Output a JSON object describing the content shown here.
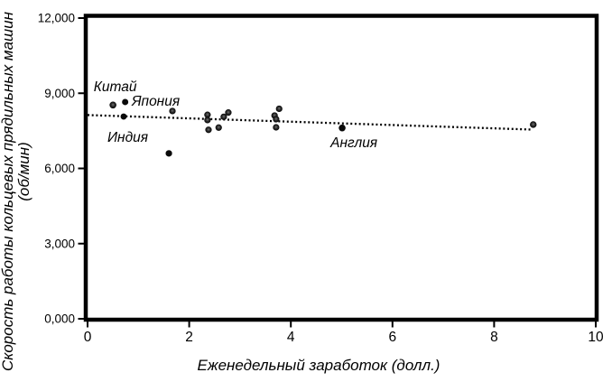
{
  "chart_data": {
    "type": "scatter",
    "title": "",
    "xlabel": "Еженедельный заработок (долл.)",
    "ylabel": "Скорость работы кольцевых прядильных машин (об/мин)",
    "ylabel_line1": "Скорость работы кольцевых прядильных машин",
    "ylabel_line2": "(об/мин)",
    "xlim": [
      0,
      10
    ],
    "ylim": [
      0,
      12000
    ],
    "grid": false,
    "legend": false,
    "x_ticks": [
      {
        "v": 0,
        "label": "0"
      },
      {
        "v": 2,
        "label": "2"
      },
      {
        "v": 4,
        "label": "4"
      },
      {
        "v": 6,
        "label": "6"
      },
      {
        "v": 8,
        "label": "8"
      },
      {
        "v": 10,
        "label": "10"
      }
    ],
    "y_ticks": [
      {
        "v": 0,
        "label": "0,000"
      },
      {
        "v": 3000,
        "label": "3,000"
      },
      {
        "v": 6000,
        "label": "6,000"
      },
      {
        "v": 9000,
        "label": "9,000"
      },
      {
        "v": 12000,
        "label": "12,000"
      }
    ],
    "points": [
      {
        "x": 0.5,
        "y": 8530,
        "style": "hatched",
        "r": 3.5,
        "country": "Китай"
      },
      {
        "x": 0.74,
        "y": 8650,
        "style": "solid",
        "r": 3.5,
        "country": "Япония"
      },
      {
        "x": 0.71,
        "y": 8070,
        "style": "solid",
        "r": 3.4,
        "country": ""
      },
      {
        "x": 1.67,
        "y": 8290,
        "style": "hatched",
        "r": 3.3,
        "country": ""
      },
      {
        "x": 1.6,
        "y": 6600,
        "style": "solid",
        "r": 3.6,
        "country": "Индия"
      },
      {
        "x": 2.36,
        "y": 8140,
        "style": "hatched",
        "r": 3.3,
        "country": ""
      },
      {
        "x": 2.36,
        "y": 7930,
        "style": "hatched",
        "r": 3.3,
        "country": ""
      },
      {
        "x": 2.38,
        "y": 7540,
        "style": "hatched",
        "r": 3.3,
        "country": ""
      },
      {
        "x": 2.58,
        "y": 7630,
        "style": "hatched",
        "r": 3.3,
        "country": ""
      },
      {
        "x": 2.68,
        "y": 8060,
        "style": "hatched",
        "r": 3.3,
        "country": ""
      },
      {
        "x": 2.77,
        "y": 8230,
        "style": "hatched",
        "r": 3.3,
        "country": ""
      },
      {
        "x": 3.77,
        "y": 8380,
        "style": "hatched",
        "r": 3.3,
        "country": ""
      },
      {
        "x": 3.68,
        "y": 8110,
        "style": "hatched",
        "r": 3.3,
        "country": ""
      },
      {
        "x": 3.71,
        "y": 7965,
        "style": "hatched",
        "r": 3.3,
        "country": ""
      },
      {
        "x": 3.71,
        "y": 7640,
        "style": "hatched",
        "r": 3.3,
        "country": ""
      },
      {
        "x": 5.01,
        "y": 7615,
        "style": "solid",
        "r": 3.8,
        "country": "Англия"
      },
      {
        "x": 8.77,
        "y": 7750,
        "style": "hatched",
        "r": 3.4,
        "country": ""
      }
    ],
    "annotations": [
      {
        "text": "Китай",
        "x": 0.12,
        "y": 9080
      },
      {
        "text": "Япония",
        "x": 0.87,
        "y": 8500
      },
      {
        "text": "Индия",
        "x": 0.39,
        "y": 7060
      },
      {
        "text": "Англия",
        "x": 4.78,
        "y": 6850
      }
    ],
    "trendline": {
      "style": "dotted",
      "x1": 0,
      "y1": 8130,
      "x2": 8.74,
      "y2": 7550
    },
    "colors": {
      "marker": "#0a0a0a",
      "axis": "#000000",
      "text": "#000000",
      "background": "#ffffff"
    }
  }
}
